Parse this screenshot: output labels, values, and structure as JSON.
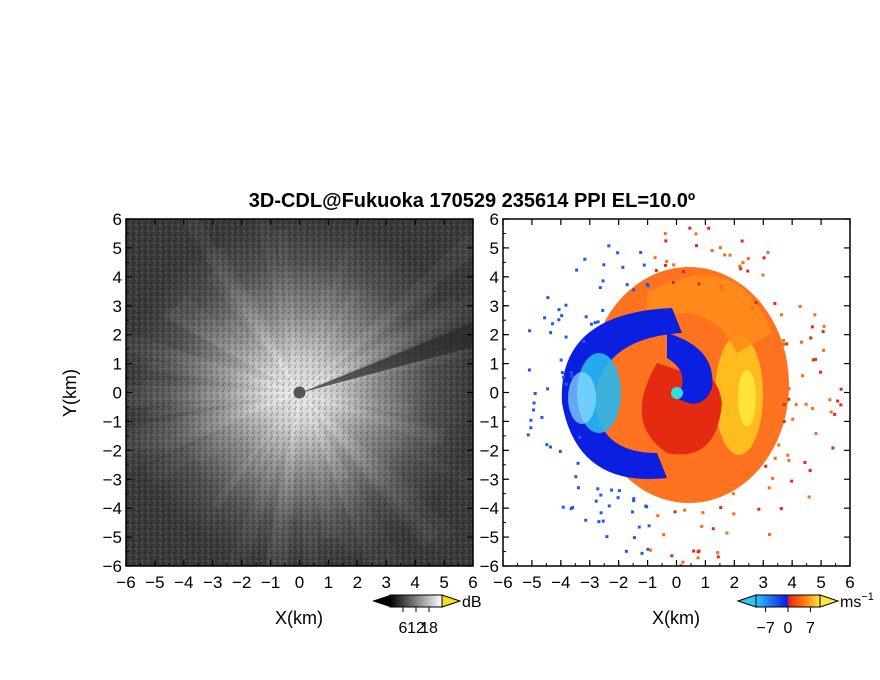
{
  "chart_data": [
    {
      "type": "heatmap",
      "panel": "left",
      "title": "3D-CDL@Fukuoka 170529 235614 PPI EL=10.0º",
      "xlabel": "X(km)",
      "ylabel": "Y(km)",
      "xlim": [
        -6,
        6
      ],
      "ylim": [
        -6,
        6
      ],
      "x_ticks": [
        "−6",
        "−5",
        "−4",
        "−3",
        "−2",
        "−1",
        "0",
        "1",
        "2",
        "3",
        "4",
        "5",
        "6"
      ],
      "y_ticks": [
        "−6",
        "−5",
        "−4",
        "−3",
        "−2",
        "−1",
        "0",
        "1",
        "2",
        "3",
        "4",
        "5",
        "6"
      ],
      "colormap": "grayscale",
      "colorbar": {
        "unit": "dB",
        "ticks": [
          "6",
          "12",
          "18"
        ],
        "tick_values": [
          6,
          12,
          18
        ],
        "range": [
          0,
          24
        ]
      },
      "grid": false
    },
    {
      "type": "heatmap",
      "panel": "right",
      "xlabel": "X(km)",
      "xlim": [
        -6,
        6
      ],
      "ylim": [
        -6,
        6
      ],
      "x_ticks": [
        "−6",
        "−5",
        "−4",
        "−3",
        "−2",
        "−1",
        "0",
        "1",
        "2",
        "3",
        "4",
        "5",
        "6"
      ],
      "y_ticks": [
        "−6",
        "−5",
        "−4",
        "−3",
        "−2",
        "−1",
        "0",
        "1",
        "2",
        "3",
        "4",
        "5",
        "6"
      ],
      "colormap": "diverging blue-cyan / red-yellow",
      "colorbar": {
        "unit": "ms",
        "unit_exponent": "−1",
        "ticks": [
          "−7",
          "0",
          "7"
        ],
        "tick_values": [
          -7,
          0,
          7
        ],
        "range": [
          -10,
          10
        ]
      },
      "grid": false
    }
  ],
  "colors": {
    "doppler_negative_dark": "#0a1fe0",
    "doppler_negative_light": "#29b8f0",
    "doppler_positive_dark": "#e52a12",
    "doppler_positive_light": "#ffe83a",
    "center_marker": "#2ee0d8"
  }
}
